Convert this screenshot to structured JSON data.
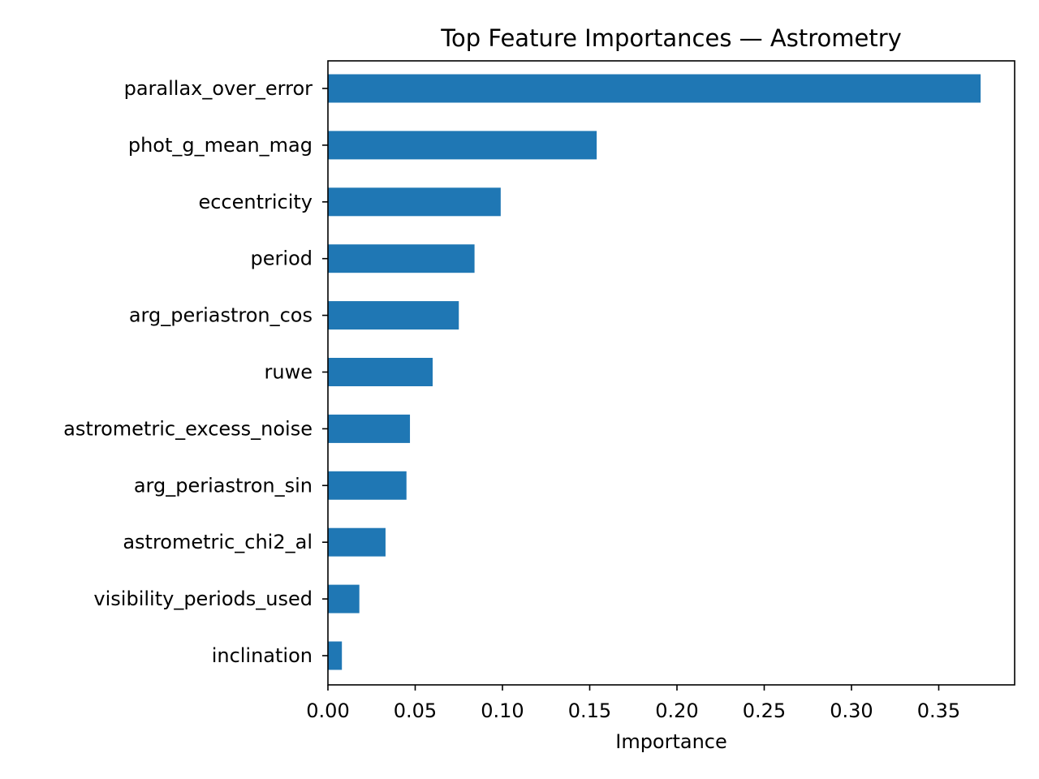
{
  "chart_data": {
    "type": "bar",
    "orientation": "horizontal",
    "title": "Top Feature Importances — Astrometry",
    "xlabel": "Importance",
    "ylabel": "",
    "xlim": [
      0,
      0.3935
    ],
    "xticks": [
      "0.00",
      "0.05",
      "0.10",
      "0.15",
      "0.20",
      "0.25",
      "0.30",
      "0.35"
    ],
    "categories": [
      "parallax_over_error",
      "phot_g_mean_mag",
      "eccentricity",
      "period",
      "arg_periastron_cos",
      "ruwe",
      "astrometric_excess_noise",
      "arg_periastron_sin",
      "astrometric_chi2_al",
      "visibility_periods_used",
      "inclination"
    ],
    "values": [
      0.374,
      0.154,
      0.099,
      0.084,
      0.075,
      0.06,
      0.047,
      0.045,
      0.033,
      0.018,
      0.008
    ],
    "bar_color": "#1f77b4",
    "grid": false,
    "legend": "none"
  }
}
